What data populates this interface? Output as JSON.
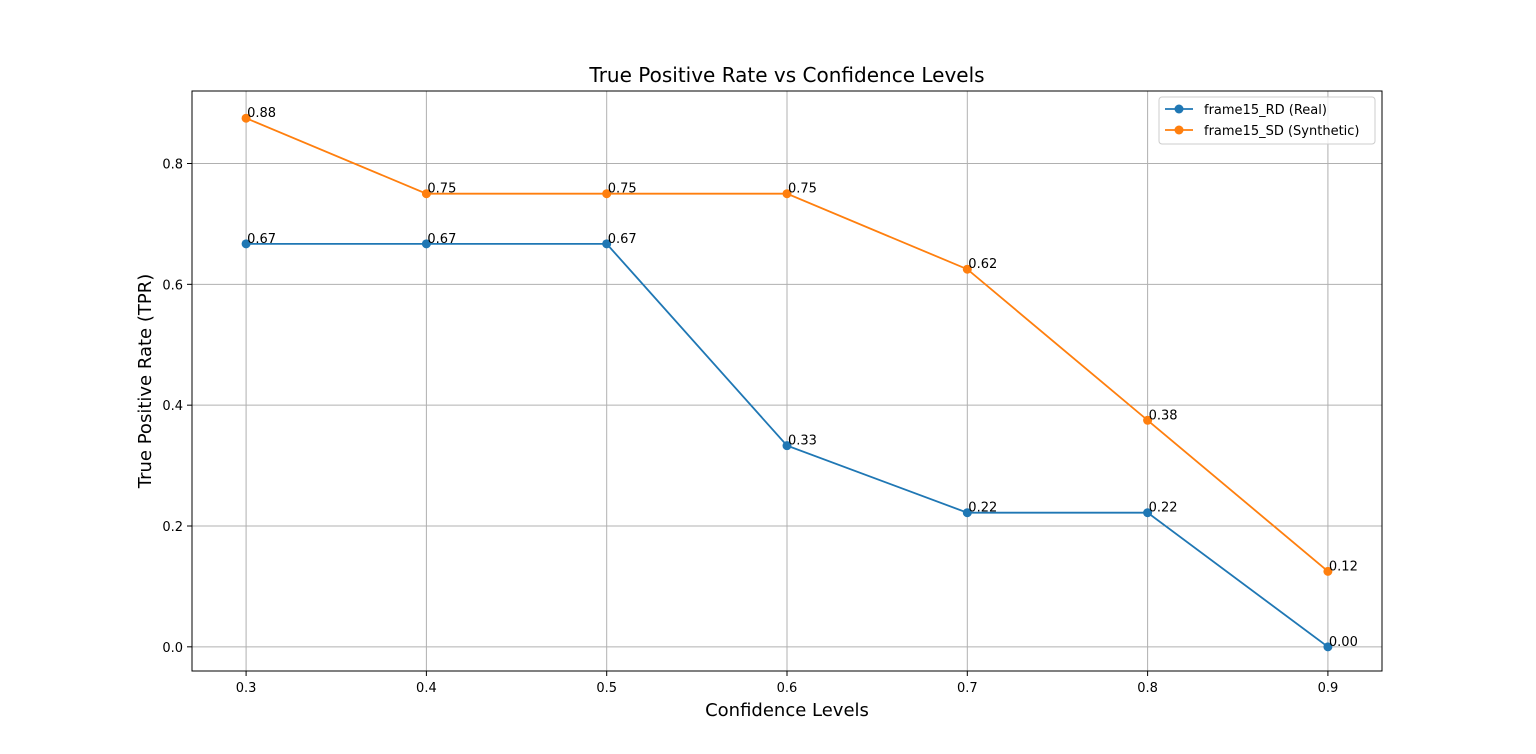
{
  "chart_data": {
    "type": "line",
    "title": "True Positive Rate vs Confidence Levels",
    "xlabel": "Confidence Levels",
    "ylabel": "True Positive Rate (TPR)",
    "x": [
      0.3,
      0.4,
      0.5,
      0.6,
      0.7,
      0.8,
      0.9
    ],
    "x_ticks": [
      "0.3",
      "0.4",
      "0.5",
      "0.6",
      "0.7",
      "0.8",
      "0.9"
    ],
    "y_ticks": [
      "0.0",
      "0.2",
      "0.4",
      "0.6",
      "0.8"
    ],
    "xlim": [
      0.27,
      0.93
    ],
    "ylim": [
      -0.04,
      0.92
    ],
    "grid": true,
    "legend_position": "top-right",
    "series": [
      {
        "name": "frame15_RD (Real)",
        "color": "#1f77b4",
        "values": [
          0.667,
          0.667,
          0.667,
          0.333,
          0.222,
          0.222,
          0.0
        ],
        "labels": [
          "0.67",
          "0.67",
          "0.67",
          "0.33",
          "0.22",
          "0.22",
          "0.00"
        ]
      },
      {
        "name": "frame15_SD (Synthetic)",
        "color": "#ff7f0e",
        "values": [
          0.875,
          0.75,
          0.75,
          0.75,
          0.625,
          0.375,
          0.125
        ],
        "labels": [
          "0.88",
          "0.75",
          "0.75",
          "0.75",
          "0.62",
          "0.38",
          "0.12"
        ]
      }
    ]
  }
}
